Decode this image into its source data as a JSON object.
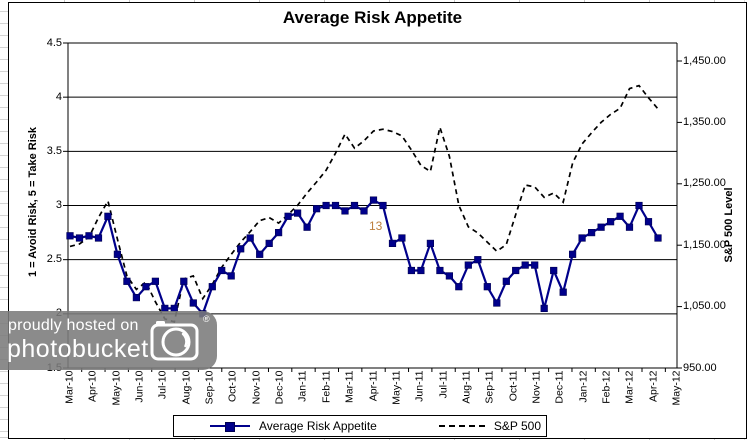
{
  "title": "Average Risk Appetite",
  "left_axis": {
    "title": "1 = Avoid Risk, 5 = Take Risk",
    "ticks": [
      "4.5",
      "4",
      "3.5",
      "3",
      "2.5",
      "2",
      "1.5"
    ],
    "min": 1.5,
    "max": 4.5,
    "step": 0.5
  },
  "right_axis": {
    "title": "S&P 500 Level",
    "ticks": [
      "1,450.00",
      "1,350.00",
      "1,250.00",
      "1,150.00",
      "1,050.00",
      "950.00"
    ],
    "min": 950,
    "max": 1450,
    "step": 100
  },
  "legend": {
    "risk_label": "Average Risk Appetite",
    "sp_label": "S&P 500"
  },
  "annotation": "13",
  "watermark": {
    "line1": "proudly hosted on",
    "line2": "photobucket",
    "registered": "®",
    "camera_icon": "camera-icon"
  },
  "colors": {
    "risk_line": "#00008b",
    "sp_line": "#000000",
    "gridline": "#000000",
    "annotation": "#bd7f3e",
    "watermark_bg": "#7b7b7b"
  },
  "chart_data": {
    "type": "line",
    "title": "Average Risk Appetite",
    "x_tick_labels": [
      "Mar-10",
      "Apr-10",
      "May-10",
      "Jun-10",
      "Jul-10",
      "Aug-10",
      "Sep-10",
      "Oct-10",
      "Nov-10",
      "Dec-10",
      "Jan-11",
      "Feb-11",
      "Mar-11",
      "Apr-11",
      "May-11",
      "Jun-11",
      "Jul-11",
      "Aug-11",
      "Sep-11",
      "Oct-11",
      "Nov-11",
      "Dec-11",
      "Jan-12",
      "Feb-12",
      "Mar-12",
      "Apr-12",
      "May-12"
    ],
    "sampling": "approximately biweekly from Mar-10 to May-12, 63 points per series",
    "left_ylim": [
      1.5,
      4.5
    ],
    "right_ylim": [
      950,
      1450
    ],
    "grid": "horizontal-only",
    "legend_position": "bottom",
    "series": [
      {
        "name": "Average Risk Appetite",
        "axis": "left",
        "style": "solid-with-square-markers",
        "color": "#00008b",
        "values": [
          2.72,
          2.7,
          2.72,
          2.7,
          2.9,
          2.55,
          2.3,
          2.15,
          2.25,
          2.3,
          2.05,
          2.05,
          2.3,
          2.1,
          2.0,
          2.25,
          2.4,
          2.35,
          2.6,
          2.7,
          2.55,
          2.65,
          2.75,
          2.9,
          2.93,
          2.8,
          2.97,
          3.0,
          3.0,
          2.95,
          3.0,
          2.95,
          3.05,
          3.0,
          2.65,
          2.7,
          2.4,
          2.4,
          2.65,
          2.4,
          2.35,
          2.25,
          2.45,
          2.5,
          2.25,
          2.1,
          2.3,
          2.4,
          2.45,
          2.45,
          2.05,
          2.4,
          2.2,
          2.55,
          2.7,
          2.75,
          2.8,
          2.85,
          2.9,
          2.8,
          3.0,
          2.85,
          2.7
        ]
      },
      {
        "name": "S&P 500",
        "axis": "right",
        "style": "dashed",
        "color": "#000000",
        "values": [
          1148,
          1152,
          1163,
          1195,
          1222,
          1160,
          1100,
          1078,
          1090,
          1058,
          1030,
          1025,
          1095,
          1100,
          1063,
          1086,
          1114,
          1135,
          1155,
          1172,
          1190,
          1195,
          1186,
          1200,
          1215,
          1235,
          1253,
          1272,
          1300,
          1331,
          1308,
          1320,
          1336,
          1339,
          1335,
          1328,
          1305,
          1280,
          1270,
          1342,
          1295,
          1215,
          1180,
          1170,
          1155,
          1140,
          1151,
          1200,
          1248,
          1245,
          1228,
          1235,
          1220,
          1284,
          1315,
          1333,
          1350,
          1363,
          1373,
          1405,
          1410,
          1390,
          1372
        ]
      }
    ]
  }
}
